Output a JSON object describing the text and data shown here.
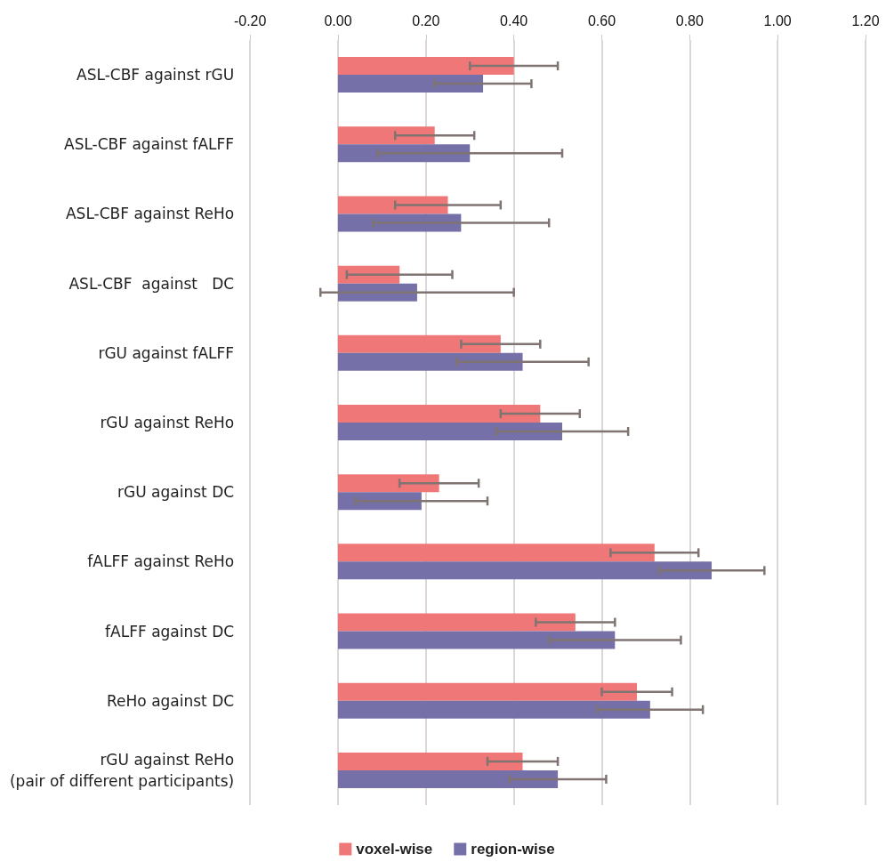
{
  "chart_data": {
    "type": "bar",
    "orientation": "horizontal",
    "categories": [
      "ASL-CBF against rGU",
      "ASL-CBF against fALFF",
      "ASL-CBF against ReHo",
      "ASL-CBF  against   DC",
      "rGU against fALFF",
      "rGU against ReHo",
      "rGU against DC",
      "fALFF against ReHo",
      "fALFF against DC",
      "ReHo against DC",
      "rGU against ReHo\n(pair of different participants)"
    ],
    "series": [
      {
        "name": "voxel-wise",
        "color": "#ef7777",
        "values": [
          0.4,
          0.22,
          0.25,
          0.14,
          0.37,
          0.46,
          0.23,
          0.72,
          0.54,
          0.68,
          0.42
        ],
        "errors": [
          0.1,
          0.09,
          0.12,
          0.12,
          0.09,
          0.09,
          0.09,
          0.1,
          0.09,
          0.08,
          0.08
        ]
      },
      {
        "name": "region-wise",
        "color": "#7570a8",
        "values": [
          0.33,
          0.3,
          0.28,
          0.18,
          0.42,
          0.51,
          0.19,
          0.85,
          0.63,
          0.71,
          0.5
        ],
        "errors": [
          0.11,
          0.21,
          0.2,
          0.22,
          0.15,
          0.15,
          0.15,
          0.12,
          0.15,
          0.12,
          0.11
        ]
      }
    ],
    "xlim": [
      -0.2,
      1.2
    ],
    "xticks": [
      {
        "value": -0.2,
        "label": "-0.20"
      },
      {
        "value": 0,
        "label": "0.00"
      },
      {
        "value": 0.2,
        "label": "0.20"
      },
      {
        "value": 0.4,
        "label": "0.40"
      },
      {
        "value": 0.6,
        "label": "0.60"
      },
      {
        "value": 0.8,
        "label": "0.80"
      },
      {
        "value": 1.0,
        "label": "1.00"
      },
      {
        "value": 1.2,
        "label": "1.20"
      }
    ],
    "grid": "x",
    "legend": "bottom"
  }
}
